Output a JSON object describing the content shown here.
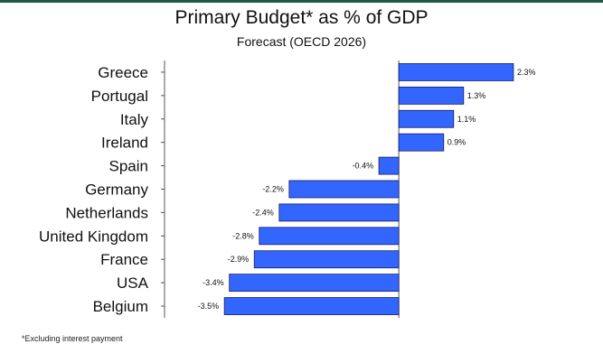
{
  "title": "Primary Budget* as % of GDP",
  "subtitle": "Forecast (OECD 2026)",
  "footnote": "*Excluding interest payment",
  "colors": {
    "bar": "#3366ff",
    "bar_edge": "#1a1a66",
    "axis": "#555555",
    "text": "#111111"
  },
  "chart_data": {
    "type": "bar",
    "orientation": "horizontal",
    "title": "Primary Budget* as % of GDP",
    "subtitle": "Forecast (OECD 2026)",
    "categories": [
      "Greece",
      "Portugal",
      "Italy",
      "Ireland",
      "Spain",
      "Germany",
      "Netherlands",
      "United Kingdom",
      "France",
      "USA",
      "Belgium"
    ],
    "values": [
      2.3,
      1.3,
      1.1,
      0.9,
      -0.4,
      -2.2,
      -2.4,
      -2.8,
      -2.9,
      -3.4,
      -3.5
    ],
    "data_labels": [
      "2.3%",
      "1.3%",
      "1.1%",
      "0.9%",
      "-0.4%",
      "-2.2%",
      "-2.4%",
      "-2.8%",
      "-2.9%",
      "-3.4%",
      "-3.5%"
    ],
    "unit": "%",
    "xlim": [
      -4.7,
      2.7
    ],
    "xlabel": "",
    "ylabel": "",
    "grid": false,
    "legend": "none"
  }
}
